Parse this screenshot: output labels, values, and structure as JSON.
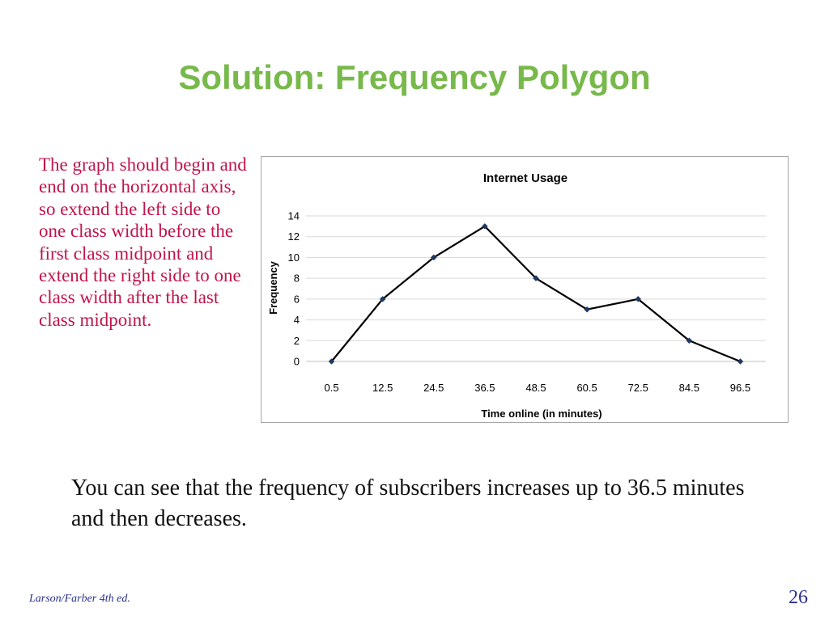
{
  "slide": {
    "title": "Solution: Frequency Polygon",
    "note": "The graph should begin and end on the horizontal axis, so extend the left side to one class width before the first class midpoint and extend the right side to one class width after the last class midpoint.",
    "caption": "You can see that the frequency of subscribers increases up to 36.5 minutes and then decreases.",
    "footer": "Larson/Farber 4th ed.",
    "page_number": "26"
  },
  "colors": {
    "title": "#77b94a",
    "note": "#c0144a",
    "footer": "#2a2f8f",
    "line": "#000000",
    "marker": "#1f3864",
    "grid": "#d9d9d9"
  },
  "chart_data": {
    "type": "line",
    "title": "Internet Usage",
    "xlabel": "Time online (in minutes)",
    "ylabel": "Frequency",
    "categories": [
      "0.5",
      "12.5",
      "24.5",
      "36.5",
      "48.5",
      "60.5",
      "72.5",
      "84.5",
      "96.5"
    ],
    "series": [
      {
        "values": [
          0,
          6,
          10,
          13,
          8,
          5,
          6,
          2,
          0
        ]
      }
    ],
    "ylim": [
      0,
      14
    ],
    "yticks": [
      0,
      2,
      4,
      6,
      8,
      10,
      12,
      14
    ],
    "grid": true,
    "legend": "none",
    "marker": "diamond"
  }
}
